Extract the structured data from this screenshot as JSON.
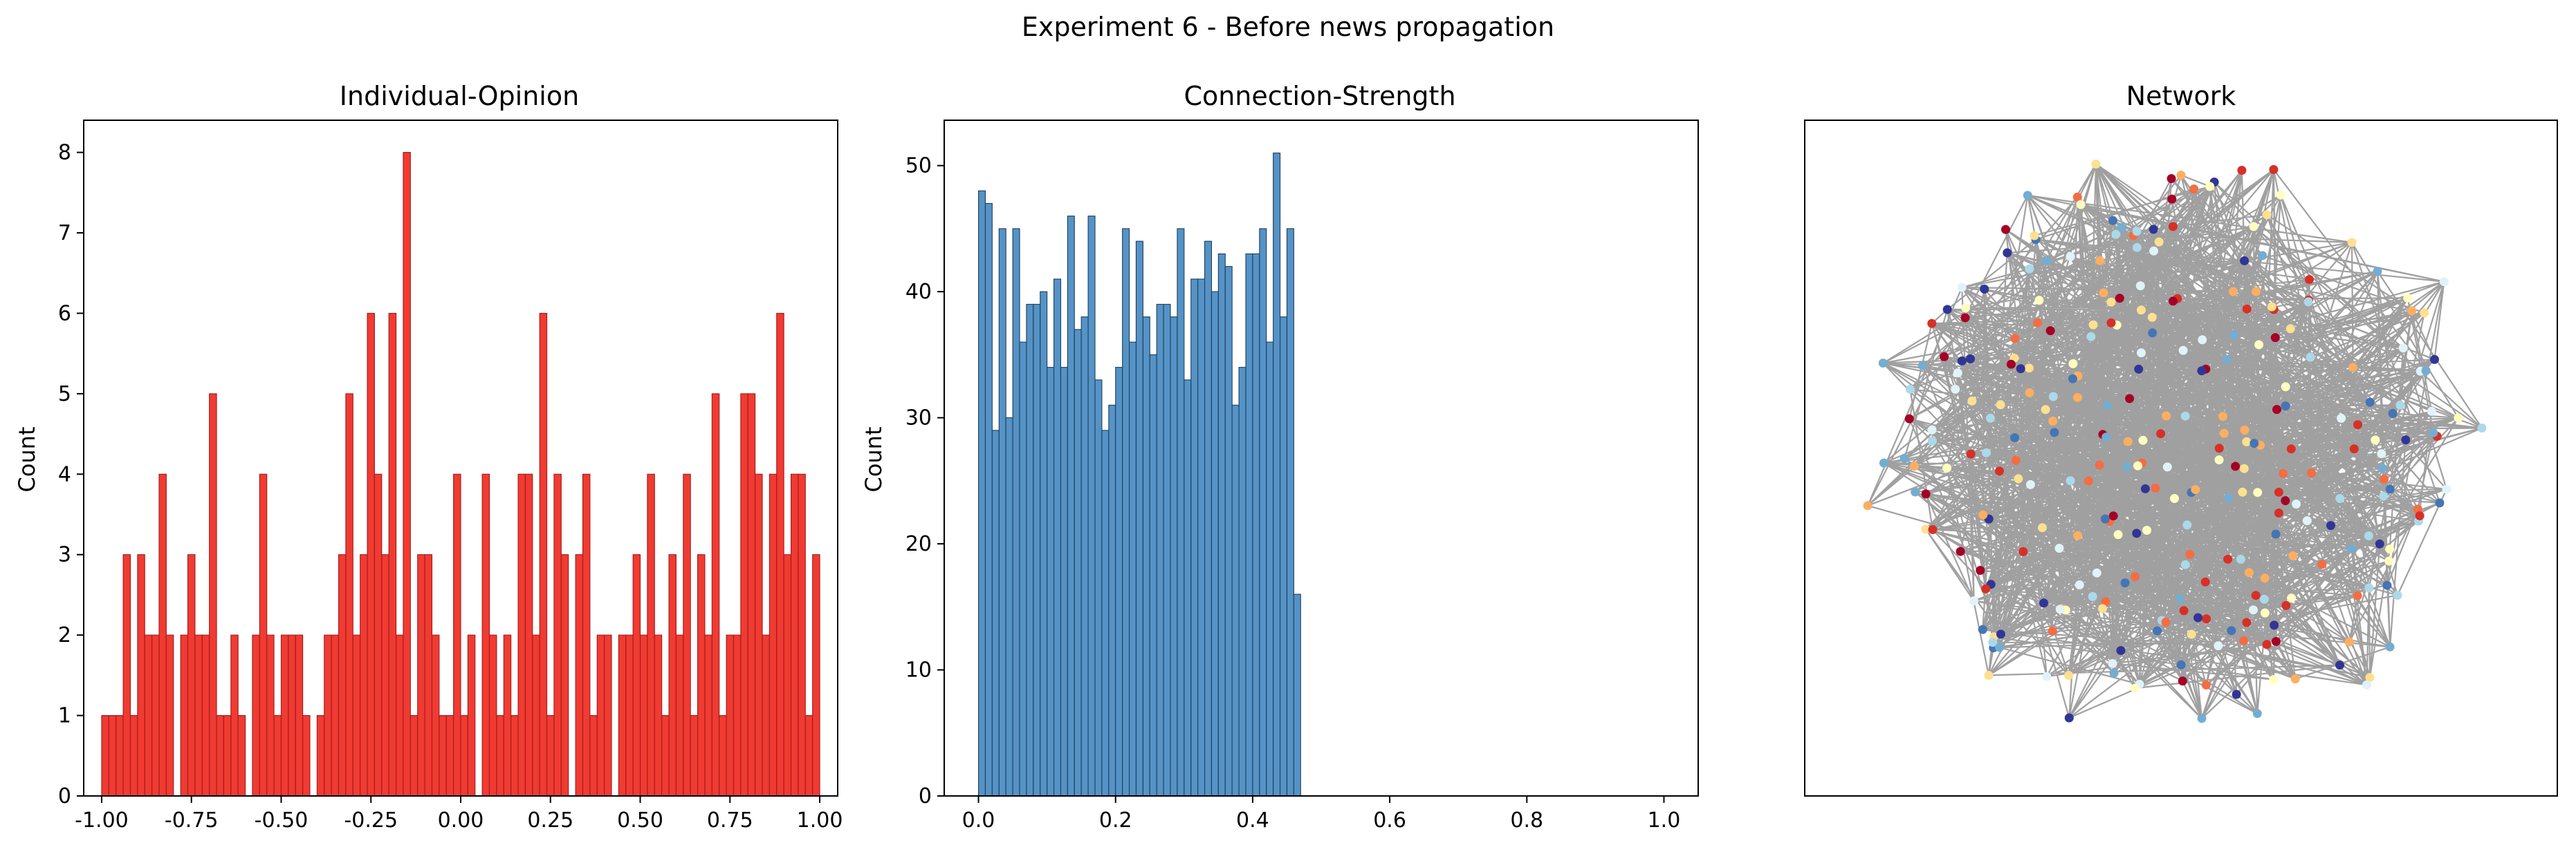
{
  "figure": {
    "suptitle": "Experiment 6 - Before news propagation"
  },
  "chart_data": [
    {
      "type": "bar",
      "title": "Individual-Opinion",
      "xlabel": "",
      "ylabel": "Count",
      "xlim": [
        -1.05,
        1.05
      ],
      "ylim": [
        0,
        8.4
      ],
      "xticks": [
        "-1.00",
        "-0.75",
        "-0.50",
        "-0.25",
        "0.00",
        "0.25",
        "0.50",
        "0.75",
        "1.00"
      ],
      "yticks": [
        "0",
        "1",
        "2",
        "3",
        "4",
        "5",
        "6",
        "7",
        "8"
      ],
      "bins": {
        "start": -1.0,
        "end": 1.0,
        "count": 100
      },
      "values": [
        1,
        1,
        1,
        3,
        1,
        3,
        2,
        2,
        4,
        2,
        0,
        2,
        3,
        2,
        2,
        5,
        1,
        1,
        2,
        1,
        0,
        2,
        4,
        2,
        1,
        2,
        2,
        2,
        1,
        0,
        1,
        2,
        2,
        3,
        5,
        2,
        3,
        6,
        4,
        3,
        6,
        2,
        8,
        1,
        3,
        3,
        2,
        1,
        1,
        4,
        1,
        2,
        0,
        4,
        2,
        1,
        2,
        1,
        4,
        4,
        2,
        6,
        1,
        4,
        3,
        0,
        3,
        4,
        1,
        2,
        2,
        0,
        2,
        2,
        3,
        2,
        4,
        2,
        1,
        3,
        2,
        4,
        1,
        3,
        2,
        5,
        1,
        2,
        2,
        5,
        5,
        4,
        2,
        4,
        6,
        3,
        4,
        4,
        1,
        3
      ],
      "bar_color": "#f03b32",
      "edge_color": "#a11a1a",
      "grid": false
    },
    {
      "type": "bar",
      "title": "Connection-Strength",
      "xlabel": "",
      "ylabel": "Count",
      "xlim": [
        -0.05,
        1.05
      ],
      "ylim": [
        0,
        53.6
      ],
      "xticks": [
        "0.0",
        "0.2",
        "0.4",
        "0.6",
        "0.8",
        "1.0"
      ],
      "yticks": [
        "0",
        "10",
        "20",
        "30",
        "40",
        "50"
      ],
      "bins": {
        "start": 0.0,
        "end": 1.0,
        "count": 100
      },
      "values": [
        48,
        47,
        29,
        45,
        30,
        45,
        36,
        39,
        39,
        40,
        34,
        41,
        34,
        46,
        37,
        38,
        46,
        33,
        29,
        31,
        34,
        45,
        36,
        44,
        38,
        35,
        39,
        39,
        38,
        45,
        33,
        41,
        41,
        44,
        40,
        43,
        42,
        31,
        34,
        43,
        43,
        45,
        36,
        51,
        38,
        45,
        16,
        0,
        0,
        0,
        0,
        0,
        0,
        0,
        0,
        0,
        0,
        0,
        0,
        0,
        0,
        0,
        0,
        0,
        0,
        0,
        0,
        0,
        0,
        0,
        0,
        0,
        0,
        0,
        0,
        0,
        0,
        0,
        0,
        0,
        0,
        0,
        0,
        0,
        0,
        0,
        0,
        0,
        0,
        0,
        0,
        0,
        0,
        0,
        0,
        0,
        0,
        0,
        0,
        0
      ],
      "bar_color": "#5593c6",
      "edge_color": "#1f3d5a",
      "grid": false
    },
    {
      "type": "network",
      "title": "Network",
      "node_palette": [
        "#a50026",
        "#d73027",
        "#f46d43",
        "#fdae61",
        "#fee090",
        "#ffffbf",
        "#e0f3f8",
        "#abd9e9",
        "#74add1",
        "#4575b4",
        "#313695"
      ],
      "edge_color": "#808080",
      "show_axes_ticks": false
    }
  ]
}
